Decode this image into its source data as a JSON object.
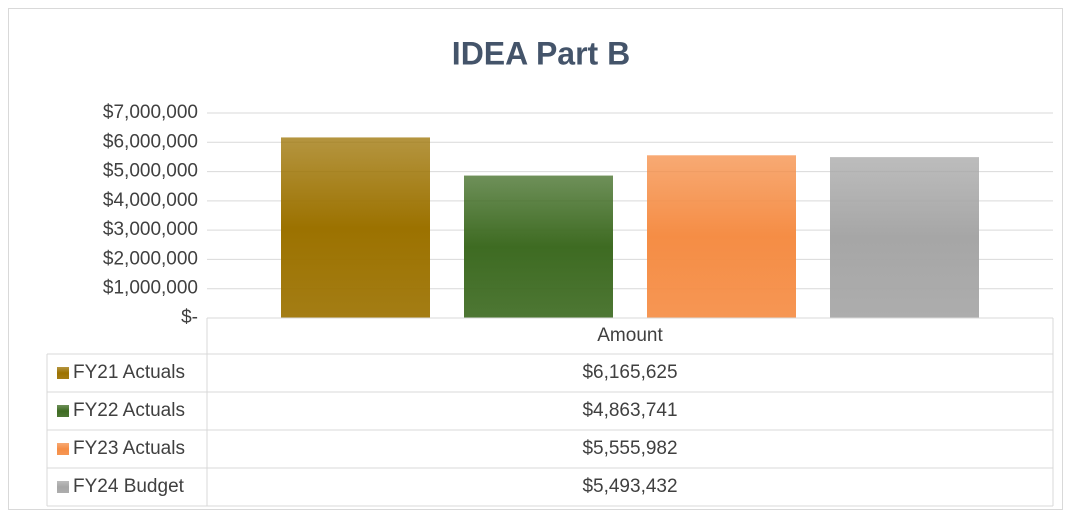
{
  "chart_data": {
    "type": "bar",
    "title": "IDEA Part B",
    "categories": [
      "Amount"
    ],
    "series": [
      {
        "name": "FY21 Actuals",
        "color": "#9c7200",
        "values": [
          6165625
        ],
        "value_labels": [
          "$6,165,625"
        ]
      },
      {
        "name": "FY22 Actuals",
        "color": "#3e6b22",
        "values": [
          4863741
        ],
        "value_labels": [
          "$4,863,741"
        ]
      },
      {
        "name": "FY23 Actuals",
        "color": "#f58d45",
        "values": [
          5555982
        ],
        "value_labels": [
          "$5,555,982"
        ]
      },
      {
        "name": "FY24 Budget",
        "color": "#a6a6a6",
        "values": [
          5493432
        ],
        "value_labels": [
          "$5,493,432"
        ]
      }
    ],
    "ylim": [
      0,
      7000000
    ],
    "yticks": [
      {
        "value": 0,
        "label": "$-"
      },
      {
        "value": 1000000,
        "label": "$1,000,000"
      },
      {
        "value": 2000000,
        "label": "$2,000,000"
      },
      {
        "value": 3000000,
        "label": "$3,000,000"
      },
      {
        "value": 4000000,
        "label": "$4,000,000"
      },
      {
        "value": 5000000,
        "label": "$5,000,000"
      },
      {
        "value": 6000000,
        "label": "$6,000,000"
      },
      {
        "value": 7000000,
        "label": "$7,000,000"
      }
    ],
    "grid": true,
    "legend": "table"
  }
}
